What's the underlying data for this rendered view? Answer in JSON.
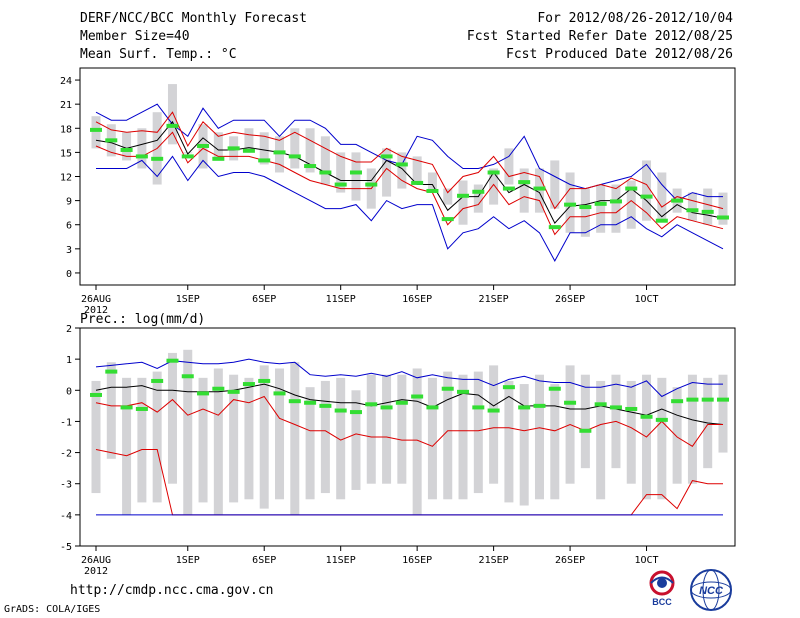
{
  "header": {
    "title": "DERF/NCC/BCC Monthly Forecast",
    "member_size": "Member Size=40",
    "variable": "Mean Surf. Temp.: °C",
    "period": "For 2012/08/26-2012/10/04",
    "started": "Fcst Started Refer Date 2012/08/25",
    "produced": "Fcst Produced Date 2012/08/26"
  },
  "footer": {
    "url": "http://cmdp.ncc.cma.gov.cn",
    "grads": "GrADS: COLA/IGES"
  },
  "logos": {
    "bcc": {
      "name": "bcc-logo",
      "label": "BCC",
      "color": "#c8102e"
    },
    "ncc": {
      "name": "ncc-logo",
      "label": "NCC",
      "color": "#1a3c9c"
    }
  },
  "colors": {
    "box": "#d3d3d6",
    "median": "#33dd33",
    "mean": "#000000",
    "envelope": "#0000cc",
    "spread": "#dd0000"
  },
  "chart_data": [
    {
      "type": "line",
      "title": "Mean Surf. Temp.: °C",
      "ylim": [
        -1.5,
        25.5
      ],
      "yticks": [
        0,
        3,
        6,
        9,
        12,
        15,
        18,
        21,
        24
      ],
      "xticks": [
        {
          "day": 0,
          "label": "26AUG",
          "sub": "2012"
        },
        {
          "day": 6,
          "label": "1SEP"
        },
        {
          "day": 11,
          "label": "6SEP"
        },
        {
          "day": 16,
          "label": "11SEP"
        },
        {
          "day": 21,
          "label": "16SEP"
        },
        {
          "day": 26,
          "label": "21SEP"
        },
        {
          "day": 31,
          "label": "26SEP"
        },
        {
          "day": 36,
          "label": "1OCT"
        }
      ],
      "box_low": [
        15.5,
        14.5,
        14,
        13,
        11,
        16,
        15,
        13,
        14,
        14,
        15,
        13.5,
        12.5,
        13,
        12.5,
        11,
        10,
        9,
        8,
        9.5,
        10.5,
        11,
        10,
        8.5,
        6,
        7.5,
        8.5,
        11,
        7.5,
        7.5,
        8,
        5,
        4.5,
        5,
        5,
        5.5,
        6.5,
        6.5,
        7.5,
        6.5,
        6,
        6
      ],
      "box_high": [
        19.5,
        18.5,
        17.5,
        18,
        20,
        23.5,
        15,
        18.5,
        17.5,
        17,
        18,
        17.5,
        17,
        18,
        18,
        17,
        15,
        15,
        13,
        15.5,
        15,
        14.5,
        12.5,
        10.5,
        11.5,
        11,
        13,
        15.5,
        13,
        13,
        14,
        12.5,
        10.5,
        11,
        11,
        11.5,
        14,
        12.5,
        10.5,
        10,
        10.5,
        10
      ],
      "median": [
        17.8,
        16.5,
        15.3,
        14.5,
        14.2,
        18.3,
        14.5,
        15.8,
        14.2,
        15.5,
        15.2,
        14,
        15,
        14.5,
        13.3,
        12.5,
        11,
        12.5,
        11,
        14.5,
        13.5,
        11.2,
        10.2,
        6.7,
        9.6,
        10.1,
        12.5,
        10.5,
        11.3,
        10.5,
        5.7,
        8.5,
        8.2,
        8.6,
        8.9,
        10.5,
        9.5,
        6.5,
        9,
        7.8,
        7.6,
        6.9
      ],
      "series": [
        {
          "name": "Ensemble max",
          "role": "envelope",
          "values": [
            20,
            19,
            19,
            20,
            21,
            18.5,
            17,
            20.5,
            18,
            19,
            19,
            19,
            17,
            19,
            19,
            18,
            16,
            16,
            15,
            14,
            13.5,
            17,
            16.5,
            14.5,
            13,
            13,
            13.5,
            14.5,
            17,
            13,
            12,
            11,
            10.5,
            11,
            11.5,
            12,
            13.5,
            11,
            9,
            10,
            9.5,
            9.5
          ]
        },
        {
          "name": "Mean plus spread",
          "role": "spread",
          "values": [
            18.8,
            17.8,
            17.5,
            17.7,
            17.5,
            20,
            15.8,
            18.8,
            17,
            17.5,
            17.2,
            17,
            16.5,
            17.5,
            16.5,
            15.5,
            14.5,
            13.8,
            13.8,
            15.5,
            14.5,
            14,
            13.5,
            10,
            12,
            12.5,
            14.5,
            12,
            12.5,
            12,
            8,
            10.5,
            10.5,
            11,
            10.5,
            11.8,
            11,
            8.2,
            9.5,
            9,
            8.5,
            8
          ]
        },
        {
          "name": "Ensemble mean",
          "role": "mean",
          "values": [
            16.5,
            16.2,
            15.5,
            16,
            16.5,
            18.8,
            14.8,
            16.8,
            15.3,
            15.3,
            15.6,
            15.3,
            15,
            14.5,
            13.5,
            12.5,
            11.5,
            11.5,
            11.5,
            14,
            13,
            11,
            11,
            7.8,
            9.5,
            9.5,
            12.5,
            10,
            11,
            10,
            6.2,
            8.3,
            8.5,
            9,
            9,
            10.5,
            9,
            7,
            8.5,
            7.5,
            7.2,
            6.8
          ]
        },
        {
          "name": "Mean minus spread",
          "role": "spread",
          "values": [
            15.8,
            15,
            14.5,
            14.5,
            15.5,
            17.5,
            13.7,
            15.5,
            14.5,
            14.5,
            14.5,
            14,
            13.5,
            12.5,
            11.5,
            11,
            10.5,
            10.5,
            10.5,
            13,
            11.5,
            10.5,
            10,
            6,
            8,
            8.5,
            11,
            8.5,
            9.5,
            9,
            4.8,
            7,
            7,
            7.5,
            7.5,
            9,
            7.5,
            5.5,
            7,
            6.5,
            6,
            5.5
          ]
        },
        {
          "name": "Ensemble min",
          "role": "envelope",
          "values": [
            13,
            13,
            13,
            14,
            12,
            14.5,
            11.5,
            14,
            12,
            12.5,
            12.5,
            12,
            11,
            10,
            9,
            8,
            8,
            8.5,
            6.5,
            9,
            8,
            8.5,
            8.5,
            3,
            5,
            5.5,
            7,
            5.5,
            6.5,
            5,
            1.5,
            5,
            5,
            6,
            6,
            7,
            5.5,
            4.5,
            6,
            5,
            4,
            3
          ]
        }
      ]
    },
    {
      "type": "line",
      "title": "Prec.: log(mm/d)",
      "ylim": [
        -5,
        2
      ],
      "yticks": [
        -5,
        -4,
        -3,
        -2,
        -1,
        0,
        1,
        2
      ],
      "xticks": [
        {
          "day": 0,
          "label": "26AUG",
          "sub": "2012"
        },
        {
          "day": 6,
          "label": "1SEP"
        },
        {
          "day": 11,
          "label": "6SEP"
        },
        {
          "day": 16,
          "label": "11SEP"
        },
        {
          "day": 21,
          "label": "16SEP"
        },
        {
          "day": 26,
          "label": "21SEP"
        },
        {
          "day": 31,
          "label": "26SEP"
        },
        {
          "day": 36,
          "label": "1OCT"
        }
      ],
      "box_low": [
        -3.3,
        -2.2,
        -4,
        -3.6,
        -3.6,
        -3,
        -4,
        -3.6,
        -4,
        -3.6,
        -3.5,
        -3.8,
        -3.5,
        -4,
        -3.5,
        -3.3,
        -3.5,
        -3.2,
        -3,
        -3,
        -3,
        -4,
        -3.5,
        -3.5,
        -3.5,
        -3.3,
        -3,
        -3.6,
        -3.7,
        -3.5,
        -3.5,
        -3,
        -2.5,
        -3.5,
        -2.5,
        -3,
        -3.5,
        -3.5,
        -3,
        -3,
        -2.5,
        -2
      ],
      "box_high": [
        0.3,
        0.9,
        0.4,
        0.4,
        0.6,
        1.2,
        1.3,
        0.4,
        0.7,
        0.5,
        0.4,
        0.8,
        0.7,
        0.9,
        0.1,
        0.3,
        0.4,
        0,
        0.5,
        0.5,
        0.5,
        0.7,
        0.4,
        0.6,
        0.5,
        0.6,
        0.8,
        0.3,
        0.2,
        0.5,
        0.2,
        0.8,
        0.5,
        0.3,
        0.5,
        0.3,
        0.5,
        0.4,
        0.1,
        0.5,
        0.4,
        0.5
      ],
      "median": [
        -0.15,
        0.6,
        -0.55,
        -0.6,
        0.3,
        0.95,
        0.45,
        -0.1,
        0.05,
        -0.05,
        0.2,
        0.3,
        -0.1,
        -0.35,
        -0.4,
        -0.5,
        -0.65,
        -0.7,
        -0.45,
        -0.55,
        -0.4,
        -0.2,
        -0.55,
        0.05,
        -0.05,
        -0.55,
        -0.65,
        0.1,
        -0.55,
        -0.5,
        0.05,
        -0.4,
        -1.3,
        -0.45,
        -0.55,
        -0.6,
        -0.85,
        -0.95,
        -0.35,
        -0.3,
        -0.3,
        -0.3
      ],
      "series": [
        {
          "name": "Ensemble max",
          "role": "envelope",
          "values": [
            0.75,
            0.8,
            0.85,
            0.9,
            0.7,
            0.95,
            0.9,
            0.85,
            0.85,
            0.9,
            1,
            0.9,
            0.85,
            0.9,
            0.5,
            0.45,
            0.5,
            0.45,
            0.55,
            0.45,
            0.6,
            0.4,
            0.5,
            0.4,
            0.35,
            0.35,
            0.15,
            0.35,
            0.45,
            0.3,
            0.25,
            0.25,
            0.1,
            0.1,
            0.2,
            0.1,
            0.3,
            -0.2,
            0.05,
            0.25,
            0.2,
            0.2
          ]
        },
        {
          "name": "Mean",
          "role": "mean",
          "values": [
            0,
            0.1,
            0.1,
            0.15,
            0,
            0,
            -0.05,
            -0.05,
            -0.05,
            0,
            0.1,
            0.2,
            0.05,
            -0.15,
            -0.3,
            -0.35,
            -0.4,
            -0.4,
            -0.5,
            -0.4,
            -0.3,
            -0.35,
            -0.55,
            -0.3,
            -0.1,
            -0.15,
            -0.5,
            -0.2,
            -0.5,
            -0.5,
            -0.5,
            -0.6,
            -0.6,
            -0.5,
            -0.6,
            -0.7,
            -0.8,
            -0.6,
            -0.8,
            -0.95,
            -1.05,
            -1.1
          ]
        },
        {
          "name": "Upper spread",
          "role": "spread",
          "values": [
            -0.4,
            -0.5,
            -0.5,
            -0.4,
            -0.7,
            -0.3,
            -0.8,
            -0.6,
            -0.8,
            -0.3,
            -0.4,
            -0.2,
            -0.9,
            -1.1,
            -1.3,
            -1.3,
            -1.6,
            -1.4,
            -1.5,
            -1.5,
            -1.6,
            -1.6,
            -1.8,
            -1.3,
            -1.3,
            -1.3,
            -1.2,
            -1.2,
            -1.3,
            -1.2,
            -1.3,
            -1.1,
            -1.3,
            -1.1,
            -1,
            -1.2,
            -1.5,
            -1,
            -1.5,
            -1.8,
            -1.1,
            -1.1
          ]
        },
        {
          "name": "Lower spread",
          "role": "spread",
          "values": [
            -1.9,
            -2,
            -2.1,
            -1.9,
            -1.9,
            -4,
            -4,
            -4,
            -4,
            -4,
            -4,
            -4,
            -4,
            -4,
            -4,
            -4,
            -4,
            -4,
            -4,
            -4,
            -4,
            -4,
            -4,
            -4,
            -4,
            -4,
            -4,
            -4,
            -4,
            -4,
            -4,
            -4,
            -4,
            -4,
            -4,
            -4,
            -3.35,
            -3.35,
            -3.8,
            -2.9,
            -3,
            -3
          ]
        },
        {
          "name": "Ensemble min",
          "role": "envelope",
          "values": [
            -4,
            -4,
            -4,
            -4,
            -4,
            -4,
            -4,
            -4,
            -4,
            -4,
            -4,
            -4,
            -4,
            -4,
            -4,
            -4,
            -4,
            -4,
            -4,
            -4,
            -4,
            -4,
            -4,
            -4,
            -4,
            -4,
            -4,
            -4,
            -4,
            -4,
            -4,
            -4,
            -4,
            -4,
            -4,
            -4,
            -4,
            -4,
            -4,
            -4,
            -4,
            -4
          ]
        }
      ]
    }
  ]
}
